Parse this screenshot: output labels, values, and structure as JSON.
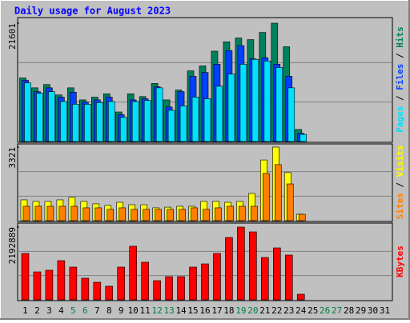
{
  "chart_data": [
    {
      "type": "bar",
      "title": "Daily usage for August 2023",
      "categories": [
        "1",
        "2",
        "3",
        "4",
        "5",
        "6",
        "7",
        "8",
        "9",
        "10",
        "11",
        "12",
        "13",
        "14",
        "15",
        "16",
        "17",
        "18",
        "19",
        "20",
        "21",
        "22",
        "23",
        "24",
        "25",
        "26",
        "27",
        "28",
        "29",
        "30",
        "31"
      ],
      "category_colors": [
        "#000000",
        "#000000",
        "#000000",
        "#000000",
        "#008040",
        "#008040",
        "#000000",
        "#000000",
        "#000000",
        "#000000",
        "#000000",
        "#008040",
        "#008040",
        "#000000",
        "#000000",
        "#000000",
        "#000000",
        "#000000",
        "#008040",
        "#008040",
        "#000000",
        "#000000",
        "#000000",
        "#000000",
        "#000000",
        "#008040",
        "#008040",
        "#000000",
        "#000000",
        "#000000",
        "#000000"
      ],
      "separator": " / ",
      "ylim": [
        0,
        21601
      ],
      "yticks": [
        21601
      ],
      "series": [
        {
          "name": "Pages",
          "color": "#00e0ff",
          "values": [
            10700,
            8800,
            9100,
            7300,
            6800,
            6800,
            7100,
            7300,
            4400,
            7300,
            7500,
            9800,
            5700,
            6500,
            8100,
            7800,
            10100,
            12300,
            14100,
            15000,
            14700,
            13500,
            9800,
            1300,
            0,
            0,
            0,
            0,
            0,
            0,
            0
          ]
        },
        {
          "name": "Files",
          "color": "#0040ff",
          "values": [
            11200,
            9100,
            9800,
            8100,
            9000,
            7200,
            7600,
            8100,
            4900,
            7600,
            7800,
            10000,
            6300,
            9100,
            11900,
            12600,
            14100,
            16600,
            17500,
            15100,
            15300,
            14100,
            11900,
            1500,
            0,
            0,
            0,
            0,
            0,
            0,
            0
          ]
        },
        {
          "name": "Hits",
          "color": "#00805c",
          "values": [
            11600,
            9800,
            10400,
            8500,
            9800,
            7600,
            8100,
            8700,
            5400,
            8700,
            8200,
            10600,
            7600,
            9400,
            12900,
            13800,
            16500,
            18200,
            18900,
            18600,
            19900,
            21601,
            17300,
            2200,
            0,
            0,
            0,
            0,
            0,
            0,
            0
          ]
        }
      ]
    },
    {
      "type": "bar",
      "separator": " / ",
      "ylim": [
        0,
        3321
      ],
      "yticks": [
        3321
      ],
      "series": [
        {
          "name": "Sites",
          "color": "#ff8000",
          "values": [
            650,
            650,
            650,
            650,
            650,
            580,
            580,
            510,
            580,
            510,
            510,
            510,
            510,
            510,
            580,
            510,
            580,
            650,
            650,
            650,
            2130,
            2530,
            1660,
            290,
            0,
            0,
            0,
            0,
            0,
            0,
            0
          ]
        },
        {
          "name": "Visits",
          "color": "#ffff00",
          "values": [
            940,
            870,
            870,
            940,
            1050,
            870,
            760,
            690,
            830,
            720,
            720,
            580,
            610,
            650,
            650,
            870,
            870,
            830,
            870,
            1230,
            2740,
            3321,
            2170,
            290,
            0,
            0,
            0,
            0,
            0,
            0,
            0
          ]
        }
      ]
    },
    {
      "type": "bar",
      "ylim": [
        0,
        2192889
      ],
      "yticks": [
        2192889
      ],
      "series": [
        {
          "name": "KBytes",
          "color": "#ff0000",
          "values": [
            1398000,
            843000,
            892000,
            1181000,
            988000,
            651000,
            530000,
            410000,
            988000,
            1615000,
            1133000,
            578000,
            699000,
            699000,
            988000,
            1084000,
            1398000,
            1880000,
            2192889,
            2048000,
            1277000,
            1566000,
            1350000,
            169000,
            0,
            0,
            0,
            0,
            0,
            0,
            0
          ]
        }
      ]
    }
  ]
}
